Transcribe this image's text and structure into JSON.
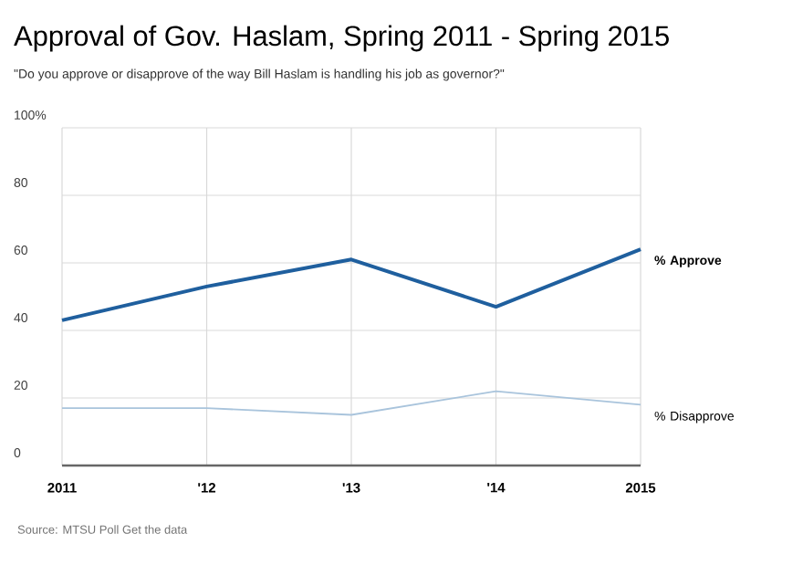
{
  "chart_data": {
    "type": "line",
    "title": "Approval of Gov. Haslam, Spring 2011 - Spring 2015",
    "subtitle": "\"Do you approve or disapprove of the way Bill Haslam is handling his job as governor?\"",
    "categories": [
      "2011",
      "'12",
      "'13",
      "'14",
      "2015"
    ],
    "series": [
      {
        "name": "% Approve",
        "color": "#1f5f9e",
        "values": [
          43,
          53,
          61,
          47,
          64
        ]
      },
      {
        "name": "% Disapprove",
        "color": "#a9c4dc",
        "values": [
          17,
          17,
          15,
          22,
          18
        ]
      }
    ],
    "ylim": [
      0,
      100
    ],
    "yticks": [
      0,
      20,
      40,
      60,
      80,
      {
        "value": 100,
        "label": "100%"
      }
    ],
    "grid": true,
    "legend": false,
    "marker": "none",
    "line_style": "solid",
    "annotations": [
      "Source: MTSU Poll Get the data"
    ]
  }
}
